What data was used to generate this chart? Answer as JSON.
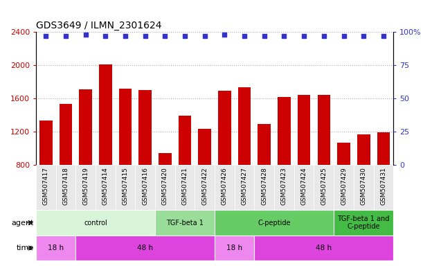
{
  "title": "GDS3649 / ILMN_2301624",
  "samples": [
    "GSM507417",
    "GSM507418",
    "GSM507419",
    "GSM507414",
    "GSM507415",
    "GSM507416",
    "GSM507420",
    "GSM507421",
    "GSM507422",
    "GSM507426",
    "GSM507427",
    "GSM507428",
    "GSM507423",
    "GSM507424",
    "GSM507425",
    "GSM507429",
    "GSM507430",
    "GSM507431"
  ],
  "counts": [
    1330,
    1530,
    1710,
    2010,
    1720,
    1700,
    940,
    1390,
    1230,
    1690,
    1730,
    1290,
    1620,
    1640,
    1640,
    1070,
    1170,
    1190
  ],
  "percentiles": [
    97,
    97,
    98,
    97,
    97,
    97,
    97,
    97,
    97,
    98,
    97,
    97,
    97,
    97,
    97,
    97,
    97,
    97
  ],
  "ylim_left": [
    800,
    2400
  ],
  "ylim_right": [
    0,
    100
  ],
  "yticks_left": [
    800,
    1200,
    1600,
    2000,
    2400
  ],
  "yticks_right": [
    0,
    25,
    50,
    75,
    100
  ],
  "bar_color": "#cc0000",
  "dot_color": "#3333cc",
  "agent_groups": [
    {
      "label": "control",
      "start": 0,
      "end": 6,
      "color": "#d9f5d9"
    },
    {
      "label": "TGF-beta 1",
      "start": 6,
      "end": 9,
      "color": "#99dd99"
    },
    {
      "label": "C-peptide",
      "start": 9,
      "end": 15,
      "color": "#66cc66"
    },
    {
      "label": "TGF-beta 1 and\nC-peptide",
      "start": 15,
      "end": 18,
      "color": "#44bb44"
    }
  ],
  "time_groups": [
    {
      "label": "18 h",
      "start": 0,
      "end": 2,
      "color": "#ee88ee"
    },
    {
      "label": "48 h",
      "start": 2,
      "end": 9,
      "color": "#dd44dd"
    },
    {
      "label": "18 h",
      "start": 9,
      "end": 11,
      "color": "#ee88ee"
    },
    {
      "label": "48 h",
      "start": 11,
      "end": 18,
      "color": "#dd44dd"
    }
  ],
  "legend_count_color": "#cc0000",
  "legend_pct_color": "#3333cc",
  "bg_color": "#ffffff",
  "grid_color": "#aaaaaa",
  "tick_bg_color": "#e8e8e8"
}
